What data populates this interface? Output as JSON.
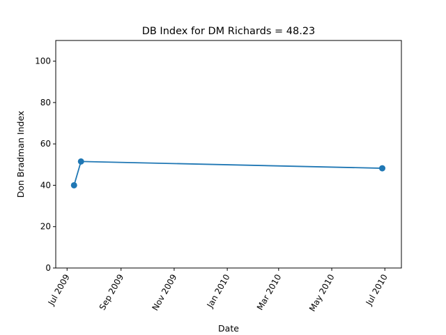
{
  "chart_data": {
    "type": "line",
    "title": "DB Index for DM Richards = 48.23",
    "xlabel": "Date",
    "ylabel": "Don Bradman Index",
    "ylim": [
      0,
      110
    ],
    "xlim": [
      "2009-06-18",
      "2010-07-20"
    ],
    "yticks": [
      0,
      20,
      40,
      60,
      80,
      100
    ],
    "xticks": [
      {
        "date": "2009-07-01",
        "label": "Jul 2009"
      },
      {
        "date": "2009-09-01",
        "label": "Sep 2009"
      },
      {
        "date": "2009-11-01",
        "label": "Nov 2009"
      },
      {
        "date": "2010-01-01",
        "label": "Jan 2010"
      },
      {
        "date": "2010-03-01",
        "label": "Mar 2010"
      },
      {
        "date": "2010-05-01",
        "label": "May 2010"
      },
      {
        "date": "2010-07-01",
        "label": "Jul 2010"
      }
    ],
    "series": [
      {
        "color": "#1f77b4",
        "marker": "circle",
        "x": [
          "2009-07-09",
          "2009-07-17",
          "2010-06-28"
        ],
        "y": [
          40.0,
          51.5,
          48.23
        ]
      }
    ],
    "grid": false,
    "legend": "none"
  }
}
